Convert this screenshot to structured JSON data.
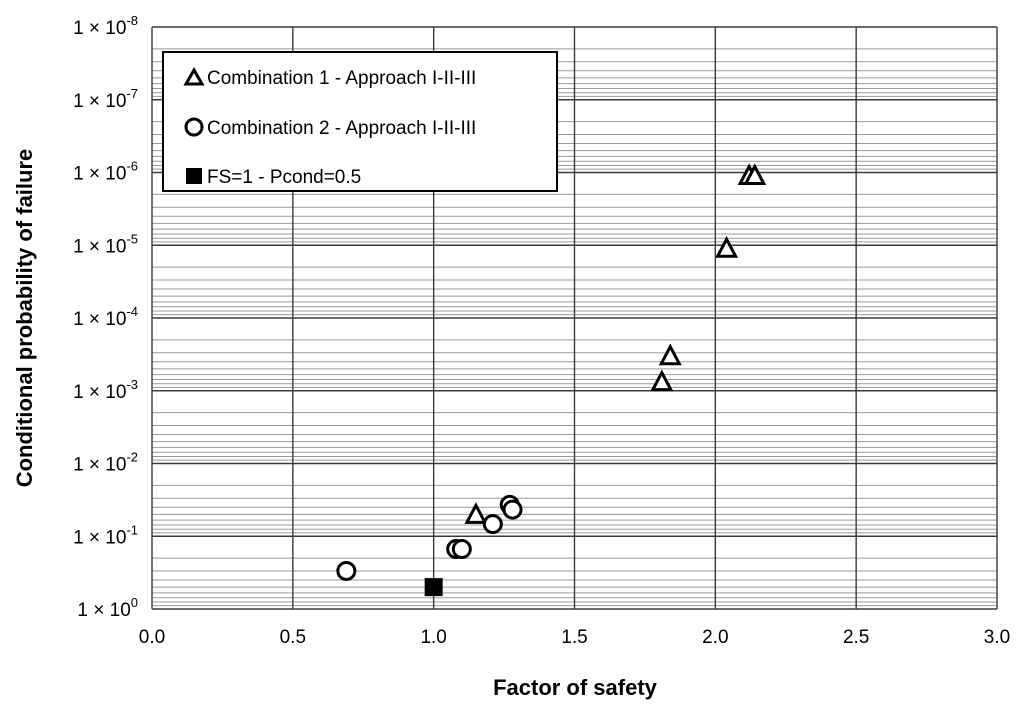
{
  "chart_data": {
    "type": "scatter",
    "xlabel": "Factor of safety",
    "ylabel": "Conditional probability of failure",
    "xlim": [
      0,
      3.0
    ],
    "xticks": [
      {
        "value": 0.0,
        "label": "0.0"
      },
      {
        "value": 0.5,
        "label": "0.5"
      },
      {
        "value": 1.0,
        "label": "1.0"
      },
      {
        "value": 1.5,
        "label": "1.5"
      },
      {
        "value": 2.0,
        "label": "2.0"
      },
      {
        "value": 2.5,
        "label": "2.5"
      },
      {
        "value": 3.0,
        "label": "3.0"
      }
    ],
    "yscale": "log-reversed",
    "ylim_exponent": [
      -8,
      0
    ],
    "yticks": [
      {
        "exp": -8,
        "base": "1 × 10",
        "sup": "-8"
      },
      {
        "exp": -7,
        "base": "1 × 10",
        "sup": "-7"
      },
      {
        "exp": -6,
        "base": "1 × 10",
        "sup": "-6"
      },
      {
        "exp": -5,
        "base": "1 × 10",
        "sup": "-5"
      },
      {
        "exp": -4,
        "base": "1 × 10",
        "sup": "-4"
      },
      {
        "exp": -3,
        "base": "1 × 10",
        "sup": "-3"
      },
      {
        "exp": -2,
        "base": "1 × 10",
        "sup": "-2"
      },
      {
        "exp": -1,
        "base": "1 × 10",
        "sup": "-1"
      },
      {
        "exp": 0,
        "base": "1 × 10",
        "sup": "0"
      }
    ],
    "grid": true,
    "legend_position": "top-left",
    "series": [
      {
        "name": "Combination 1 - Approach I-II-III",
        "marker": "triangle",
        "points": [
          {
            "x": 1.15,
            "y": 0.05
          },
          {
            "x": 1.81,
            "y": 0.00075
          },
          {
            "x": 1.84,
            "y": 0.00033
          },
          {
            "x": 2.04,
            "y": 1.1e-05
          },
          {
            "x": 2.12,
            "y": 1.1e-06
          },
          {
            "x": 2.14,
            "y": 1.1e-06
          }
        ]
      },
      {
        "name": "Combination 2 - Approach I-II-III",
        "marker": "circle",
        "points": [
          {
            "x": 0.69,
            "y": 0.3
          },
          {
            "x": 1.08,
            "y": 0.15
          },
          {
            "x": 1.1,
            "y": 0.15
          },
          {
            "x": 1.21,
            "y": 0.068
          },
          {
            "x": 1.27,
            "y": 0.037
          },
          {
            "x": 1.28,
            "y": 0.043
          }
        ]
      },
      {
        "name": "FS=1 - Pcond=0.5",
        "marker": "square",
        "points": [
          {
            "x": 1.0,
            "y": 0.5
          }
        ]
      }
    ]
  }
}
